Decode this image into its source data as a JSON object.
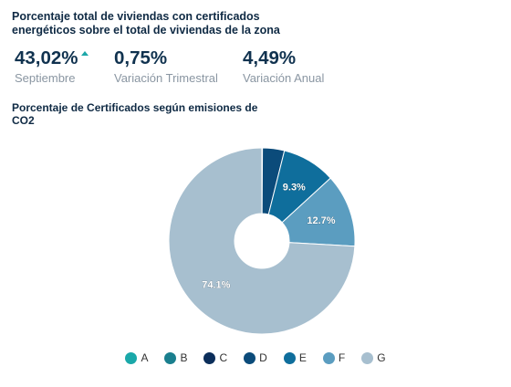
{
  "header": {
    "title": "Porcentaje total de viviendas con certificados energéticos sobre el total de viviendas de la zona"
  },
  "stats": [
    {
      "value": "43,02%",
      "label": "Septiembre",
      "trend": "up"
    },
    {
      "value": "0,75%",
      "label": "Variación Trimestral"
    },
    {
      "value": "4,49%",
      "label": "Variación Anual"
    }
  ],
  "chart_data": {
    "type": "pie",
    "style": "donut",
    "title": "Porcentaje de Certificados según emisiones de CO2",
    "categories": [
      "A",
      "B",
      "C",
      "D",
      "E",
      "F",
      "G"
    ],
    "values": [
      0.0,
      0.0,
      0.1,
      3.8,
      9.3,
      12.7,
      74.1
    ],
    "data_labels": [
      "",
      "",
      "",
      "",
      "9.3%",
      "12.7%",
      "74.1%"
    ],
    "colors": [
      "#1aa8a9",
      "#1a7f8e",
      "#0b2e5a",
      "#0b4b7a",
      "#0f6e9c",
      "#5b9dc0",
      "#a7bfcf"
    ],
    "legend_position": "bottom"
  }
}
